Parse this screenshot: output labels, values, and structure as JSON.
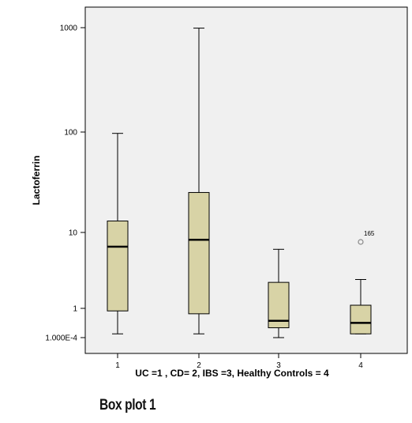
{
  "chart_data": {
    "type": "box",
    "categories": [
      "1",
      "2",
      "3",
      "4"
    ],
    "xlabel": "UC =1 , CD= 2, IBS =3, Healthy Controls = 4",
    "ylabel": "Lactoferrin",
    "y_scale": "log-like (non-uniform tick spacing)",
    "y_ticks": [
      "1000",
      "100",
      "10",
      "1",
      "1.000E-4"
    ],
    "boxes": [
      {
        "category": "1",
        "whisker_low": 0.35,
        "q1": 0.9,
        "median": 6.5,
        "q3": 13,
        "whisker_high": 97
      },
      {
        "category": "2",
        "whisker_low": 0.35,
        "q1": 0.8,
        "median": 8,
        "q3": 25,
        "whisker_high": 990
      },
      {
        "category": "3",
        "whisker_low": 0.3,
        "q1": 0.45,
        "median": 0.6,
        "q3": 2.2,
        "whisker_high": 6
      },
      {
        "category": "4",
        "whisker_low": 0.35,
        "q1": 0.35,
        "median": 0.55,
        "q3": 1.1,
        "whisker_high": 2.4
      }
    ],
    "outliers": [
      {
        "category": "4",
        "value": 7.5,
        "label": "165"
      }
    ],
    "colors": {
      "box_fill": "#d8d3a6",
      "box_stroke": "#000000",
      "plot_bg": "#f0f0f0",
      "outlier": "#888888"
    }
  },
  "caption": "Box plot 1"
}
